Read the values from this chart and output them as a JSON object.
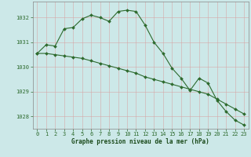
{
  "line1": {
    "x": [
      0,
      1,
      2,
      3,
      4,
      5,
      6,
      7,
      8,
      9,
      10,
      11,
      12,
      13,
      14,
      15,
      16,
      17,
      18,
      19,
      20,
      21,
      22,
      23
    ],
    "y": [
      1030.55,
      1030.9,
      1030.85,
      1031.55,
      1031.6,
      1031.95,
      1032.1,
      1032.0,
      1031.85,
      1032.25,
      1032.3,
      1032.25,
      1031.7,
      1031.0,
      1030.55,
      1029.95,
      1029.55,
      1029.05,
      1029.55,
      1029.35,
      1028.65,
      1028.2,
      1027.85,
      1027.65
    ]
  },
  "line2": {
    "x": [
      0,
      1,
      2,
      3,
      4,
      5,
      6,
      7,
      8,
      9,
      10,
      11,
      12,
      13,
      14,
      15,
      16,
      17,
      18,
      19,
      20,
      21,
      22,
      23
    ],
    "y": [
      1030.55,
      1030.55,
      1030.5,
      1030.45,
      1030.4,
      1030.35,
      1030.25,
      1030.15,
      1030.05,
      1029.95,
      1029.85,
      1029.75,
      1029.6,
      1029.5,
      1029.4,
      1029.3,
      1029.2,
      1029.1,
      1029.0,
      1028.9,
      1028.7,
      1028.5,
      1028.3,
      1028.1
    ]
  },
  "line_color": "#2d6a2d",
  "bg_color": "#cce8e8",
  "grid_color": "#b0d0d0",
  "xlabel": "Graphe pression niveau de la mer (hPa)",
  "xlabel_color": "#1a4a1a",
  "yticks": [
    1028,
    1029,
    1030,
    1031,
    1032
  ],
  "xticks": [
    0,
    1,
    2,
    3,
    4,
    5,
    6,
    7,
    8,
    9,
    10,
    11,
    12,
    13,
    14,
    15,
    16,
    17,
    18,
    19,
    20,
    21,
    22,
    23
  ],
  "ylim": [
    1027.5,
    1032.65
  ],
  "xlim": [
    -0.5,
    23.5
  ]
}
